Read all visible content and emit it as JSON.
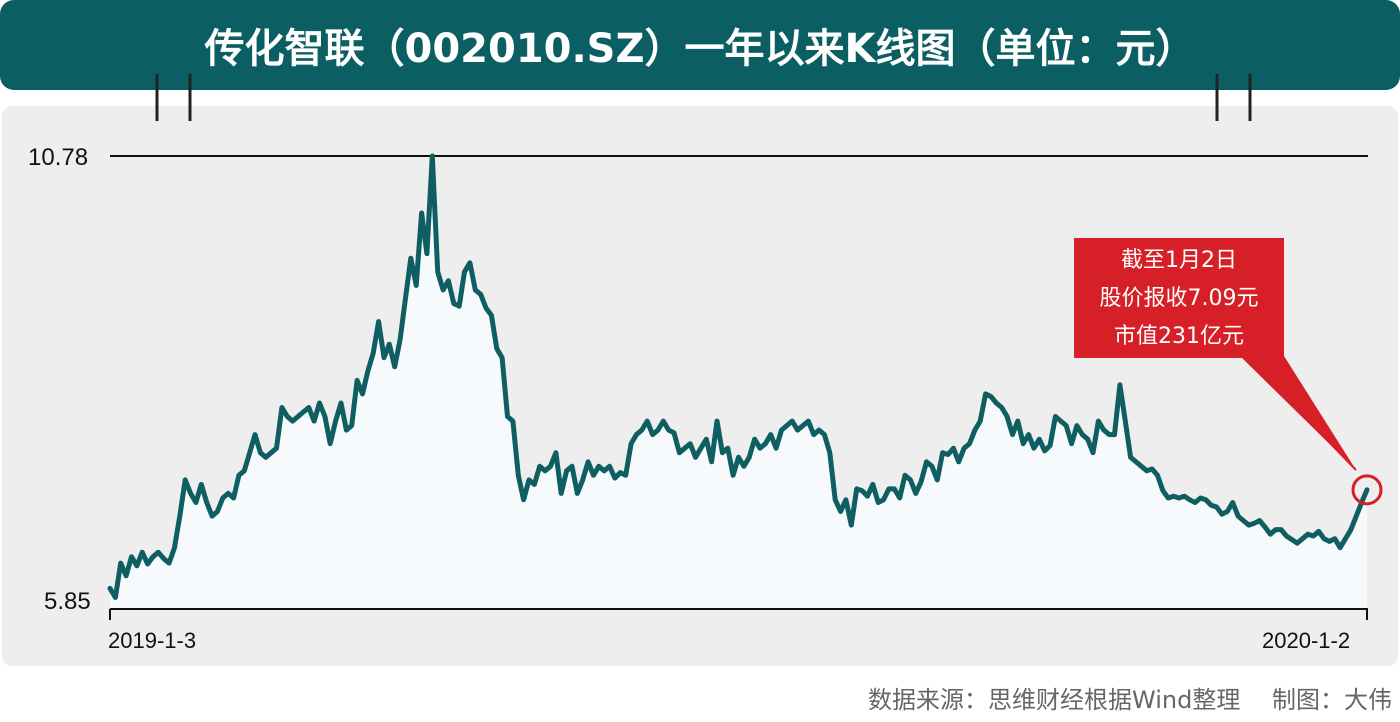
{
  "title": "传化智联（002010.SZ）一年以来K线图（单位：元）",
  "source_note": "数据来源：思维财经根据Wind整理　 制图：大伟",
  "callout": {
    "line1": "截至1月2日",
    "line2": "股价报收7.09元",
    "line3": "市值231亿元"
  },
  "colors": {
    "banner": "#0b5f62",
    "line": "#0f5e62",
    "callout": "#d61f26",
    "panel": "#eeeeee"
  },
  "chart_data": {
    "type": "line",
    "title": "传化智联（002010.SZ）一年以来K线图（单位：元）",
    "xlabel": "",
    "ylabel": "",
    "x_start_label": "2019-1-3",
    "x_end_label": "2020-1-2",
    "y_max_label": "10.78",
    "y_min_label": "5.85",
    "ylim": [
      5.85,
      10.78
    ],
    "grid": false,
    "series": [
      {
        "values": [
          6.0,
          5.9,
          6.28,
          6.14,
          6.35,
          6.25,
          6.4,
          6.27,
          6.35,
          6.4,
          6.33,
          6.28,
          6.45,
          6.8,
          7.2,
          7.05,
          6.95,
          7.15,
          6.95,
          6.8,
          6.85,
          7.0,
          7.05,
          7.0,
          7.25,
          7.3,
          7.5,
          7.7,
          7.5,
          7.45,
          7.5,
          7.55,
          8.0,
          7.9,
          7.85,
          7.9,
          7.95,
          8.0,
          7.85,
          8.05,
          7.9,
          7.6,
          7.85,
          8.05,
          7.75,
          7.8,
          8.3,
          8.15,
          8.4,
          8.6,
          8.95,
          8.55,
          8.7,
          8.45,
          8.75,
          9.2,
          9.65,
          9.35,
          10.15,
          9.7,
          10.78,
          9.5,
          9.3,
          9.4,
          9.15,
          9.12,
          9.5,
          9.6,
          9.3,
          9.25,
          9.1,
          9.02,
          8.65,
          8.55,
          7.9,
          7.85,
          7.25,
          6.98,
          7.2,
          7.15,
          7.35,
          7.3,
          7.35,
          7.5,
          7.05,
          7.3,
          7.35,
          7.05,
          7.2,
          7.4,
          7.25,
          7.35,
          7.3,
          7.35,
          7.22,
          7.28,
          7.25,
          7.6,
          7.7,
          7.75,
          7.85,
          7.7,
          7.75,
          7.85,
          7.75,
          7.72,
          7.5,
          7.55,
          7.6,
          7.45,
          7.55,
          7.65,
          7.4,
          7.85,
          7.5,
          7.55,
          7.25,
          7.45,
          7.35,
          7.45,
          7.65,
          7.55,
          7.6,
          7.7,
          7.55,
          7.75,
          7.8,
          7.85,
          7.75,
          7.8,
          7.85,
          7.7,
          7.75,
          7.7,
          7.5,
          6.98,
          6.85,
          6.98,
          6.7,
          7.1,
          7.08,
          7.02,
          7.15,
          6.95,
          6.98,
          7.1,
          7.1,
          7.0,
          7.25,
          7.2,
          7.05,
          7.18,
          7.4,
          7.35,
          7.2,
          7.5,
          7.48,
          7.55,
          7.4,
          7.55,
          7.6,
          7.75,
          7.85,
          8.15,
          8.12,
          8.05,
          8.0,
          7.9,
          7.7,
          7.85,
          7.6,
          7.7,
          7.55,
          7.65,
          7.52,
          7.58,
          7.9,
          7.85,
          7.8,
          7.6,
          7.8,
          7.7,
          7.65,
          7.5,
          7.85,
          7.75,
          7.7,
          7.7,
          8.25,
          7.85,
          7.45,
          7.4,
          7.35,
          7.3,
          7.32,
          7.25,
          7.08,
          7.0,
          7.02,
          7.0,
          7.02,
          6.98,
          6.95,
          7.0,
          6.98,
          6.92,
          6.9,
          6.82,
          6.85,
          6.95,
          6.8,
          6.75,
          6.7,
          6.72,
          6.75,
          6.68,
          6.6,
          6.65,
          6.65,
          6.58,
          6.54,
          6.5,
          6.55,
          6.6,
          6.58,
          6.63,
          6.55,
          6.52,
          6.55,
          6.45,
          6.55,
          6.65,
          6.8,
          6.95,
          7.09
        ]
      }
    ]
  }
}
